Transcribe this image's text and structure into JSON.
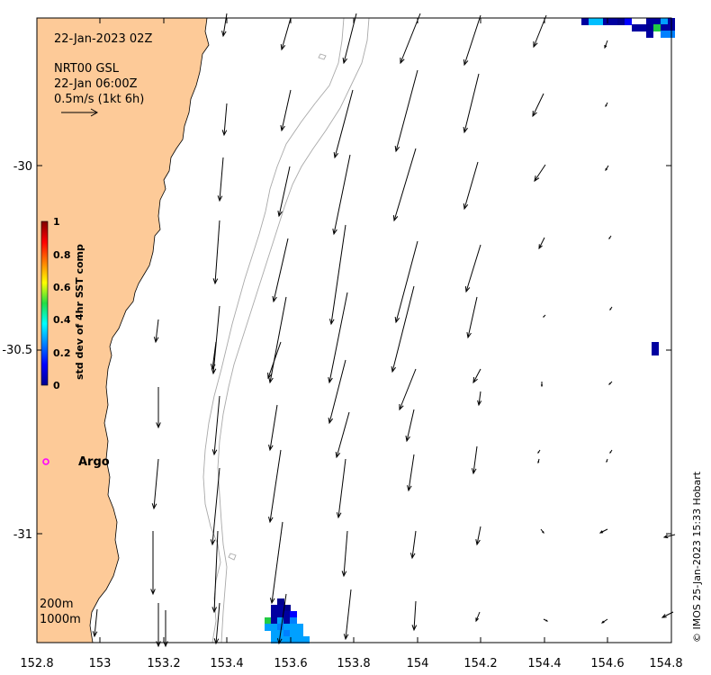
{
  "map": {
    "timestamp": "22-Jan-2023 02Z",
    "product": "NRT00 GSL",
    "valid_time": "22-Jan 06:00Z",
    "scale_label": "0.5m/s (1kt 6h)",
    "scale_arrow_speed_ms": 0.5,
    "x_ticks": [
      "152.8",
      "153",
      "153.2",
      "153.4",
      "153.6",
      "153.8",
      "154",
      "154.2",
      "154.4",
      "154.6",
      "154.8"
    ],
    "y_ticks": [
      "-30",
      "-30.5",
      "-31"
    ],
    "x_range": [
      152.8,
      154.8
    ],
    "y_range": [
      -31.3,
      -29.6
    ],
    "land_color": "#fdca98",
    "isobath_labels": [
      "200m",
      "1000m"
    ],
    "argo_label": "Argo",
    "argo_color": "#ff00ff",
    "argo_position": [
      152.83,
      -30.82
    ],
    "credit": "© IMOS 25-Jan-2023 15:33 Hobart"
  },
  "colorbar": {
    "title": "std dev of 4hr SST comp",
    "ticks": [
      "1",
      "0.8",
      "0.6",
      "0.4",
      "0.2",
      "0"
    ],
    "colormap": "jet"
  }
}
